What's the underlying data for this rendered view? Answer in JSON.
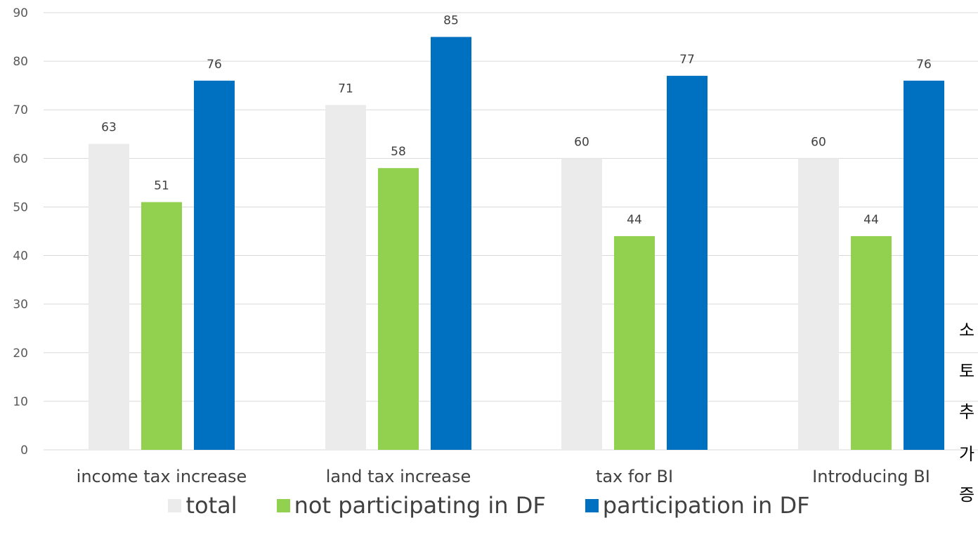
{
  "chart_data": {
    "type": "bar",
    "categories": [
      "income tax increase",
      "land tax increase",
      "tax for BI",
      "Introducing BI"
    ],
    "series": [
      {
        "name": "total",
        "color": "#ebebeb",
        "values": [
          63,
          71,
          60,
          60
        ]
      },
      {
        "name": "not participating in DF",
        "color": "#92d050",
        "values": [
          51,
          58,
          44,
          44
        ]
      },
      {
        "name": "participation in DF",
        "color": "#0070c0",
        "values": [
          76,
          85,
          77,
          76
        ]
      }
    ],
    "ylim": [
      0,
      90
    ],
    "yticks": [
      0,
      10,
      20,
      30,
      40,
      50,
      60,
      70,
      80,
      90
    ],
    "grid": true,
    "legend_position": "bottom",
    "title": "",
    "xlabel": "",
    "ylabel": ""
  },
  "clipped_side_text": [
    "소",
    "토",
    "추",
    "가",
    "증"
  ]
}
